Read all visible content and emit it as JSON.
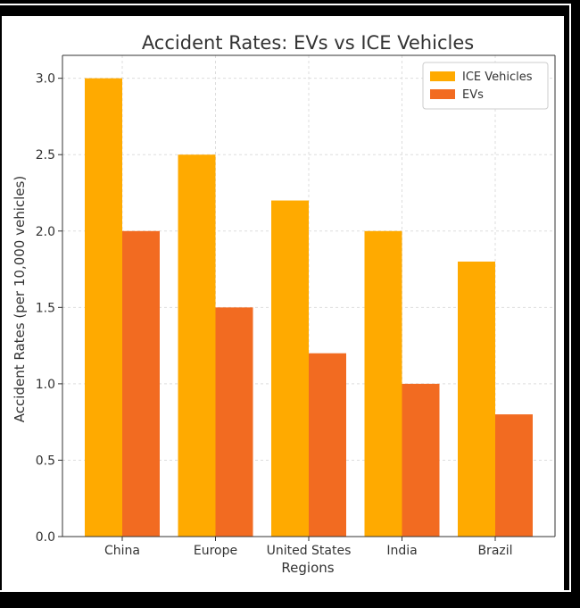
{
  "chart_data": {
    "type": "bar",
    "title": "Accident Rates: EVs vs ICE Vehicles",
    "xlabel": "Regions",
    "ylabel": "Accident Rates (per 10,000 vehicles)",
    "categories": [
      "China",
      "Europe",
      "United States",
      "India",
      "Brazil"
    ],
    "series": [
      {
        "name": "ICE Vehicles",
        "values": [
          3.0,
          2.5,
          2.2,
          2.0,
          1.8
        ],
        "color": "#FFAA00"
      },
      {
        "name": "EVs",
        "values": [
          2.0,
          1.5,
          1.2,
          1.0,
          0.8
        ],
        "color": "#F26B21"
      }
    ],
    "ylim": [
      0,
      3.15
    ],
    "yticks": [
      "0.0",
      "0.5",
      "1.0",
      "1.5",
      "2.0",
      "2.5",
      "3.0"
    ],
    "grid": true,
    "legend_position": "top-right"
  }
}
